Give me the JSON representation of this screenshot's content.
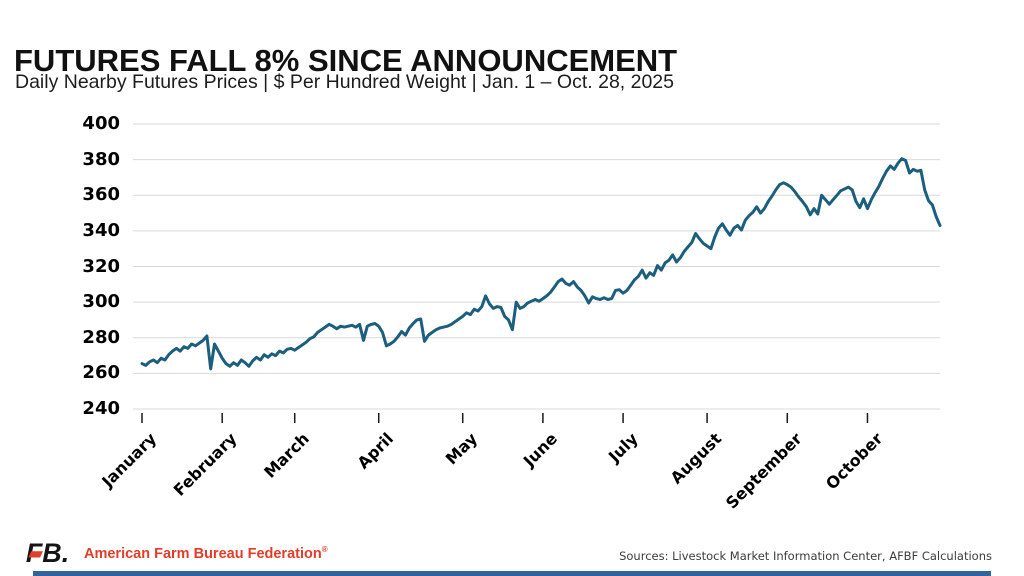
{
  "header": {
    "title": "FUTURES FALL 8% SINCE ANNOUNCEMENT",
    "subtitle": "Daily Nearby Futures Prices | $ Per Hundred Weight | Jan. 1 – Oct. 28, 2025"
  },
  "footer": {
    "brand_mark": "FB.",
    "brand": "American Farm Bureau Federation",
    "registered": "®",
    "sources": "Sources: Livestock Market Information Center, AFBF Calculations"
  },
  "colors": {
    "line": "#1b5e7d",
    "grid": "#d9d9d9",
    "tick": "#1a1a1a",
    "brand_red": "#e23d28",
    "bottom_bar": "#31649e"
  },
  "chart_data": {
    "type": "line",
    "title": "FUTURES FALL 8% SINCE ANNOUNCEMENT",
    "series_name": "Daily nearby futures price, $ per hundred weight",
    "date_range": "Jan. 1 – Oct. 28, 2025",
    "ylim": [
      240,
      400
    ],
    "y_ticks": [
      400,
      380,
      360,
      340,
      320,
      300,
      280,
      260,
      240
    ],
    "grid": "horizontal",
    "x_months": [
      "January",
      "February",
      "March",
      "April",
      "May",
      "June",
      "July",
      "August",
      "September",
      "October"
    ],
    "month_start_indices": [
      0,
      21,
      40,
      62,
      84,
      105,
      126,
      148,
      169,
      190
    ],
    "values": [
      265.5,
      264.5,
      266.5,
      267.5,
      266,
      268.5,
      267.5,
      270.5,
      272.5,
      274,
      272.5,
      275,
      274,
      276.5,
      275.5,
      277,
      278.5,
      281,
      262.5,
      276.5,
      272.5,
      268.5,
      265.5,
      264,
      266,
      264.5,
      267.5,
      266,
      264,
      267,
      269,
      267.5,
      270.5,
      269,
      271,
      270,
      272.5,
      271.5,
      273.5,
      274,
      273,
      274.5,
      276,
      277.5,
      279.5,
      280.5,
      283,
      284.5,
      286,
      287.5,
      286.5,
      285,
      286.5,
      286,
      286.5,
      287,
      286,
      287.5,
      278.5,
      286.5,
      287.5,
      288,
      286.5,
      283,
      275.5,
      276.5,
      278,
      280.5,
      283.5,
      281.5,
      285.5,
      288,
      290,
      290.5,
      278,
      281.5,
      283,
      284.5,
      285.5,
      286,
      286.5,
      287.5,
      289,
      290.5,
      292,
      294,
      293,
      296,
      295,
      297.5,
      303.5,
      299,
      296.5,
      297.5,
      297,
      292,
      290,
      284.5,
      300,
      296.5,
      297.5,
      299.5,
      300.5,
      301.5,
      300.5,
      302,
      303.5,
      305.5,
      308.5,
      311.5,
      313,
      310.5,
      309.5,
      311.5,
      308.5,
      306.5,
      303.5,
      299.5,
      303,
      302,
      301.5,
      302.5,
      301.5,
      302,
      306.5,
      307,
      305,
      306.5,
      309.5,
      312.5,
      314.5,
      318,
      313.5,
      316.5,
      315,
      320.5,
      318,
      322,
      323.5,
      326.5,
      322.5,
      325,
      328.5,
      331,
      333.5,
      338.5,
      335.5,
      333,
      331.5,
      330,
      336.5,
      341.5,
      344,
      340.5,
      337.5,
      341.5,
      343,
      340.5,
      346,
      348.5,
      350.5,
      353.5,
      350,
      352.5,
      356.5,
      359.5,
      363,
      366,
      367,
      366,
      364.5,
      362,
      359,
      356.5,
      353.5,
      349,
      352.5,
      349.5,
      360,
      357.5,
      355,
      357.5,
      360,
      362.5,
      363.5,
      364.5,
      363,
      356.5,
      353,
      358,
      352.5,
      357.5,
      361.5,
      365,
      369.5,
      373.5,
      376.5,
      374.5,
      378,
      380.5,
      379.5,
      372.5,
      374.5,
      373.5,
      374,
      363,
      357,
      354.5,
      348,
      343
    ]
  }
}
